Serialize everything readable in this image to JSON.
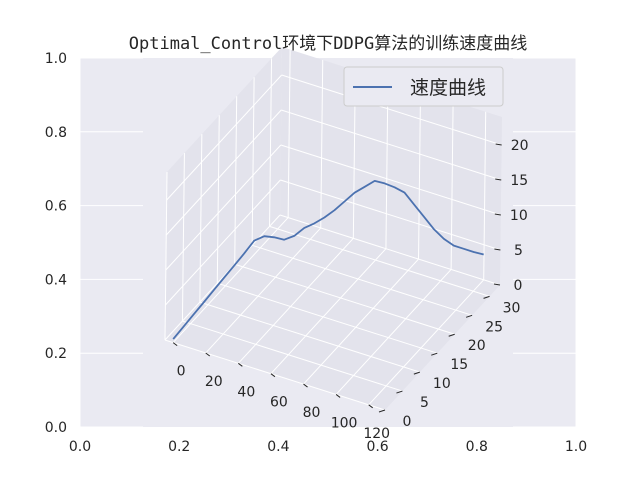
{
  "chart_data": {
    "type": "line",
    "projection": "3d",
    "title": "Optimal_Control环境下DDPG算法的训练速度曲线",
    "legend": {
      "label": "速度曲线",
      "position": "top-right"
    },
    "colors": {
      "line": "#4c72b0",
      "background": "#eaeaf2",
      "pane": "#e3e3ec",
      "grid": "#ffffff"
    },
    "outer_axes": {
      "x_ticks": [
        "0.0",
        "0.2",
        "0.4",
        "0.6",
        "0.8",
        "1.0"
      ],
      "y_ticks": [
        "0.0",
        "0.2",
        "0.4",
        "0.6",
        "0.8",
        "1.0"
      ]
    },
    "axes3d": {
      "x_ticks": [
        "0",
        "20",
        "40",
        "60",
        "80",
        "100",
        "120"
      ],
      "y_ticks": [
        "0",
        "5",
        "10",
        "15",
        "20",
        "25",
        "30"
      ],
      "z_ticks": [
        "0",
        "5",
        "10",
        "15",
        "20"
      ],
      "xlim": [
        -5,
        130
      ],
      "ylim": [
        0,
        33
      ],
      "zlim": [
        0,
        24
      ],
      "grid": true
    },
    "series": [
      {
        "x": [
          0,
          4,
          8,
          12,
          16,
          20,
          24,
          28,
          32,
          36,
          40,
          44,
          48,
          52,
          56,
          60,
          64,
          68,
          72,
          76,
          80,
          84,
          88,
          92,
          96,
          100,
          104,
          108,
          112,
          116,
          120,
          124
        ],
        "y": [
          0,
          1,
          2,
          3,
          4,
          5,
          6,
          7,
          8,
          9,
          10,
          11,
          12,
          13,
          14,
          15,
          16,
          17,
          18,
          19,
          20,
          21,
          22,
          23,
          24,
          25,
          26,
          27,
          28,
          29,
          30,
          31
        ],
        "z": [
          0.5,
          2,
          3.5,
          5,
          6.5,
          8,
          9.5,
          11,
          12.6,
          13,
          12.6,
          12,
          12.3,
          13.2,
          13.6,
          14.2,
          15,
          16,
          17,
          17.6,
          18.2,
          17.6,
          16.8,
          15.8,
          13.8,
          11.8,
          9.8,
          8.2,
          7,
          6.3,
          5.6,
          5
        ]
      }
    ]
  }
}
